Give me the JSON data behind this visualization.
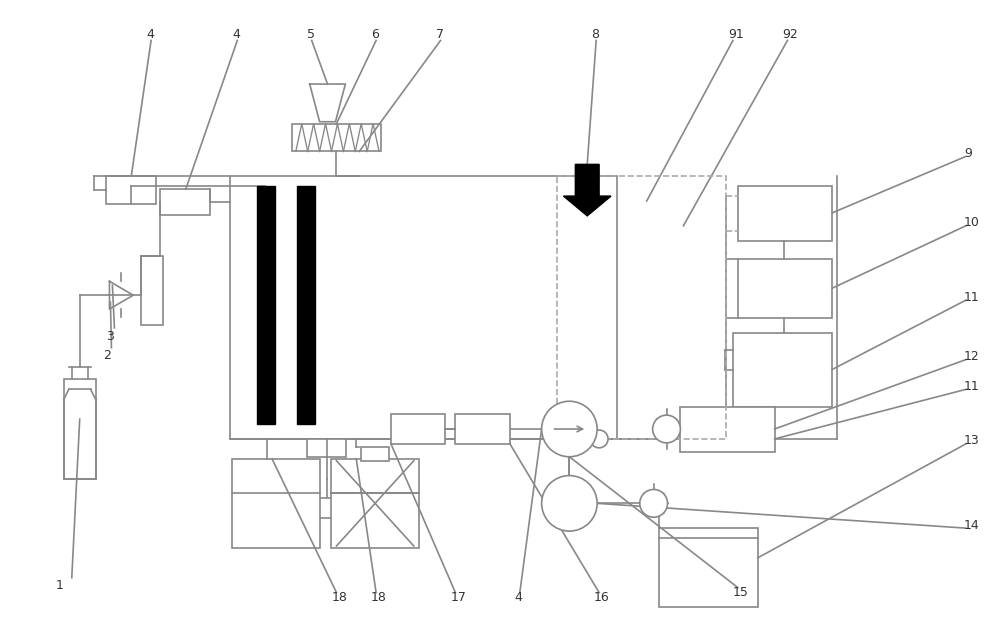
{
  "bg_color": "#ffffff",
  "line_color": "#888888",
  "lw": 1.2,
  "fs": 9
}
